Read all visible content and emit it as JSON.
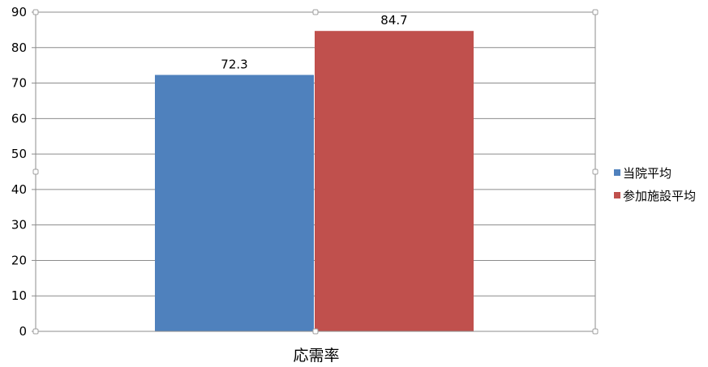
{
  "chart_data": {
    "type": "bar",
    "categories": [
      "応需率"
    ],
    "series": [
      {
        "name": "当院平均",
        "values": [
          72.3
        ],
        "color": "#4F81BD"
      },
      {
        "name": "参加施設平均",
        "values": [
          84.7
        ],
        "color": "#C0504D"
      }
    ],
    "data_labels": [
      "72.3",
      "84.7"
    ],
    "ylim": [
      0,
      90
    ],
    "yticks": [
      "0",
      "10",
      "20",
      "30",
      "40",
      "50",
      "60",
      "70",
      "80",
      "90"
    ],
    "grid": true,
    "legend_position": "right",
    "title": "",
    "xlabel": "",
    "ylabel": ""
  }
}
